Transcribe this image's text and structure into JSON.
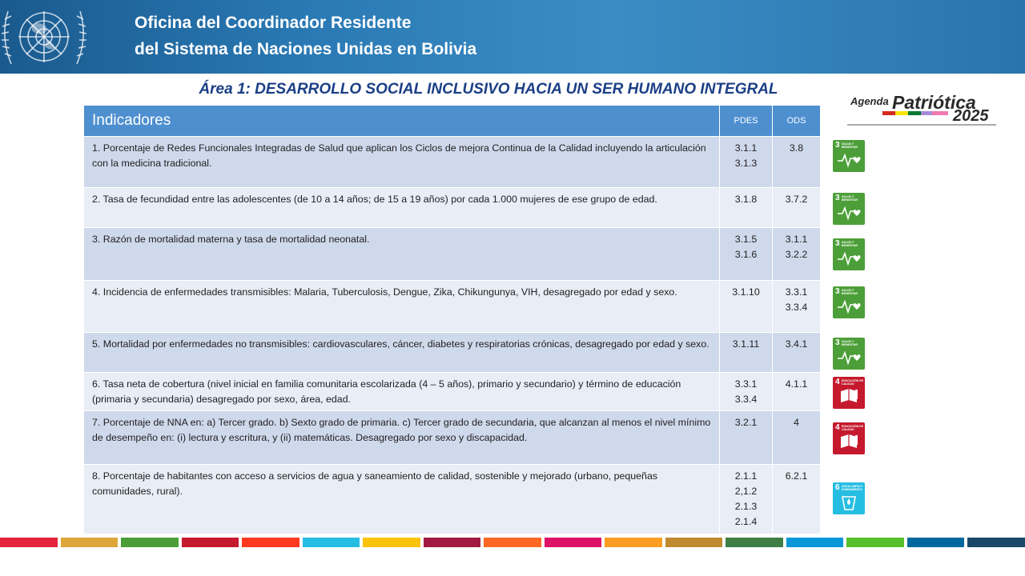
{
  "header": {
    "title_line1": "Oficina del Coordinador Residente",
    "title_line2": "del Sistema de Naciones Unidas en Bolivia"
  },
  "area_title": "Área 1: DESARROLLO SOCIAL INCLUSIVO HACIA UN SER HUMANO INTEGRAL",
  "agenda_logo": {
    "word1": "Agenda",
    "word2": "Patriótica",
    "year": "2025"
  },
  "table": {
    "headers": {
      "indicator": "Indicadores",
      "pdes": "PDES",
      "ods": "ODS"
    },
    "rows": [
      {
        "indicator": "1. Porcentaje de Redes Funcionales Integradas de Salud que aplican los Ciclos de mejora Continua de la Calidad incluyendo la articulación con la medicina tradicional.",
        "pdes": [
          "3.1.1",
          "3.1.3"
        ],
        "ods": [
          "3.8"
        ]
      },
      {
        "indicator": "2. Tasa de fecundidad entre las adolescentes (de 10 a 14 años; de 15 a 19 años) por cada 1.000 mujeres de ese grupo de edad.",
        "pdes": [
          "3.1.8"
        ],
        "ods": [
          "3.7.2"
        ]
      },
      {
        "indicator": "3. Razón de mortalidad materna y tasa de mortalidad neonatal.",
        "pdes": [
          "3.1.5",
          "3.1.6"
        ],
        "ods": [
          "3.1.1",
          "3.2.2"
        ]
      },
      {
        "indicator": "4. Incidencia de enfermedades transmisibles: Malaria, Tuberculosis, Dengue, Zika, Chikungunya, VIH, desagregado por edad y sexo.",
        "pdes": [
          "3.1.10"
        ],
        "ods": [
          "3.3.1",
          "3.3.4"
        ]
      },
      {
        "indicator": "5. Mortalidad por enfermedades no transmisibles: cardiovasculares, cáncer, diabetes y respiratorias crónicas, desagregado por edad y sexo.",
        "pdes": [
          "3.1.11"
        ],
        "ods": [
          "3.4.1"
        ]
      },
      {
        "indicator": "6. Tasa neta de cobertura (nivel inicial en familia comunitaria escolarizada (4 – 5 años), primario y secundario)  y término de educación  (primaria y secundaria) desagregado por sexo, área, edad.",
        "pdes": [
          "3.3.1",
          "3.3.4"
        ],
        "ods": [
          "4.1.1"
        ]
      },
      {
        "indicator": "7. Porcentaje de NNA en: a) Tercer grado. b) Sexto grado de primaria. c) Tercer grado de secundaria, que alcanzan al menos el nivel mínimo de desempeño en: (i) lectura y escritura, y (ii) matemáticas. Desagregado por sexo y discapacidad.",
        "pdes": [
          "3.2.1"
        ],
        "ods": [
          "4"
        ]
      },
      {
        "indicator": "8. Porcentaje de habitantes con acceso a servicios de agua y saneamiento de calidad, sostenible y mejorado (urbano, pequeñas comunidades, rural).",
        "pdes": [
          "2.1.1",
          "2,1.2",
          "2.1.3",
          "2.1.4"
        ],
        "ods": [
          "6.2.1"
        ]
      }
    ]
  },
  "sdg_icons": [
    {
      "goal": "3",
      "label": "SALUD Y BIENESTAR",
      "color": "#4c9f38",
      "icon": "heartbeat-icon"
    },
    {
      "goal": "3",
      "label": "SALUD Y BIENESTAR",
      "color": "#4c9f38",
      "icon": "heartbeat-icon"
    },
    {
      "goal": "3",
      "label": "SALUD Y BIENESTAR",
      "color": "#4c9f38",
      "icon": "heartbeat-icon"
    },
    {
      "goal": "3",
      "label": "SALUD Y BIENESTAR",
      "color": "#4c9f38",
      "icon": "heartbeat-icon"
    },
    {
      "goal": "3",
      "label": "SALUD Y BIENESTAR",
      "color": "#4c9f38",
      "icon": "heartbeat-icon"
    },
    {
      "goal": "4",
      "label": "EDUCACIÓN DE CALIDAD",
      "color": "#c5192d",
      "icon": "book-icon"
    },
    {
      "goal": "4",
      "label": "EDUCACIÓN DE CALIDAD",
      "color": "#c5192d",
      "icon": "book-icon"
    },
    {
      "goal": "6",
      "label": "AGUA LIMPIA Y SANEAMIENTO",
      "color": "#26bde2",
      "icon": "water-drop-icon"
    }
  ],
  "colors": {
    "header_blue": "#2a79b4",
    "table_header": "#4e8fd0",
    "row_dark": "#cfd9ec",
    "row_light": "#e8edf6",
    "area_title": "#1b3f86"
  },
  "bottom_bar_colors": [
    "#e5243b",
    "#dda63a",
    "#4c9f38",
    "#c5192d",
    "#ff3a21",
    "#26bde2",
    "#fcc30b",
    "#a21942",
    "#fd6925",
    "#dd1367",
    "#fd9d24",
    "#bf8b2e",
    "#3f7e44",
    "#0a97d9",
    "#56c02b",
    "#00689d",
    "#19486a"
  ]
}
